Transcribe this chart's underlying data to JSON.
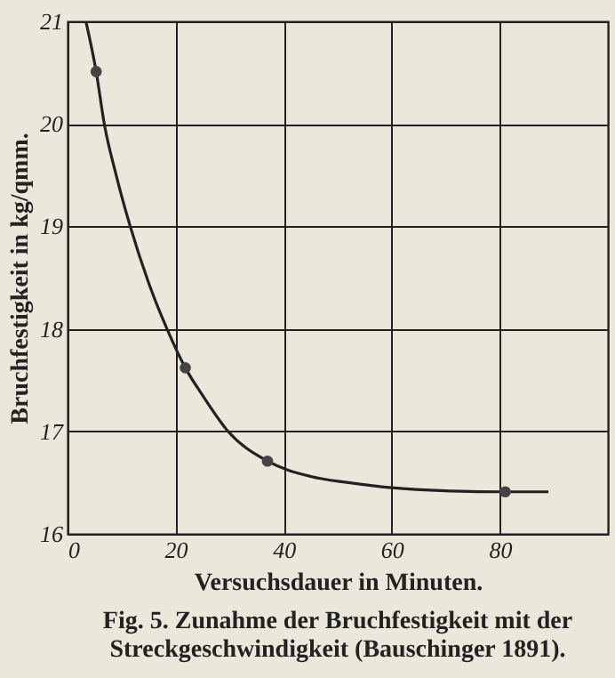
{
  "chart_data": {
    "type": "line",
    "title": "Fig. 5.  Zunahme der Bruchfestigkeit mit der Streckgeschwindigkeit (Bauschinger 1891).",
    "xlabel": "Versuchsdauer in Minuten.",
    "ylabel": "Bruchfestigkeit in kg/qmm.",
    "xlim": [
      0,
      100
    ],
    "xticks": [
      0,
      20,
      40,
      60,
      80
    ],
    "ylim": [
      16,
      21
    ],
    "yticks": [
      16,
      17,
      18,
      19,
      20,
      21
    ],
    "grid": true,
    "series": [
      {
        "color": "#222222",
        "marker": "none",
        "x": [
          3.4,
          5.3,
          6.8,
          9,
          11.6,
          15,
          18.4,
          21.8,
          25,
          29.7,
          37,
          45,
          52,
          60,
          70,
          81,
          89
        ],
        "values": [
          21,
          20.51,
          20,
          19.5,
          19,
          18.45,
          18,
          17.62,
          17.35,
          17,
          16.71,
          16.56,
          16.5,
          16.45,
          16.42,
          16.41,
          16.41
        ]
      },
      {
        "type": "scatter",
        "color": "#444444",
        "marker": "circle",
        "x": [
          5.3,
          21.8,
          37,
          81
        ],
        "values": [
          20.51,
          17.62,
          16.71,
          16.41
        ]
      }
    ]
  }
}
